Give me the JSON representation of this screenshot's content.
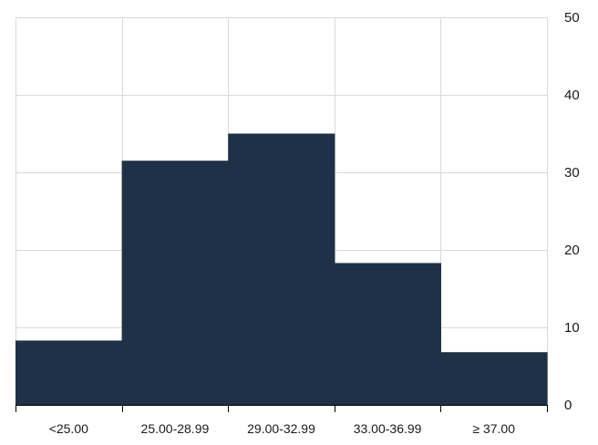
{
  "chart_data": {
    "type": "bar",
    "categories": [
      "<25.00",
      "25.00-28.99",
      "29.00-32.99",
      "33.00-36.99",
      "≥ 37.00"
    ],
    "values": [
      8.3,
      31.5,
      35.0,
      18.3,
      6.8
    ],
    "title": "",
    "xlabel": "",
    "ylabel": "",
    "ylim": [
      0,
      50
    ],
    "yticks": [
      0,
      10,
      20,
      30,
      40,
      50
    ],
    "y_axis_side": "right",
    "grid": true,
    "bar_color": "#1f3147",
    "legend": "none"
  }
}
